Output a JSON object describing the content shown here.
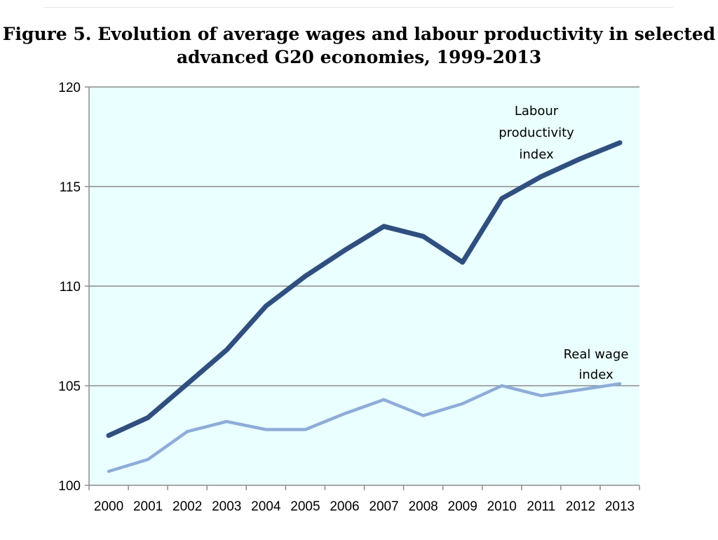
{
  "title_line1": "Figure 5.  Evolution of average wages and labour productivity in selected",
  "title_line2": "advanced G20 economies, 1999-2013",
  "chart_data": {
    "type": "line",
    "title": "Figure 5.  Evolution of average wages and labour productivity in selected advanced G20 economies, 1999-2013",
    "xlabel": "",
    "ylabel": "",
    "categories": [
      "2000",
      "2001",
      "2002",
      "2003",
      "2004",
      "2005",
      "2006",
      "2007",
      "2008",
      "2009",
      "2010",
      "2011",
      "2012",
      "2013"
    ],
    "y_ticks": [
      "100",
      "105",
      "110",
      "115",
      "120"
    ],
    "ylim": [
      100,
      120
    ],
    "grid": true,
    "legend": "none",
    "plot_background": "#eaffff",
    "series": [
      {
        "values": [
          102.5,
          103.4,
          105.1,
          106.8,
          109.0,
          110.5,
          111.8,
          113.0,
          112.5,
          111.2,
          114.4,
          115.5,
          116.4,
          117.2
        ],
        "color": "#2f4f7f",
        "annotation": [
          "Labour",
          "productivity",
          "index"
        ]
      },
      {
        "values": [
          100.7,
          101.3,
          102.7,
          103.2,
          102.8,
          102.8,
          103.6,
          104.3,
          103.5,
          104.1,
          105.0,
          104.5,
          104.8,
          105.1
        ],
        "color": "#8eacd8",
        "annotation": [
          "Real wage",
          "index"
        ]
      }
    ]
  }
}
